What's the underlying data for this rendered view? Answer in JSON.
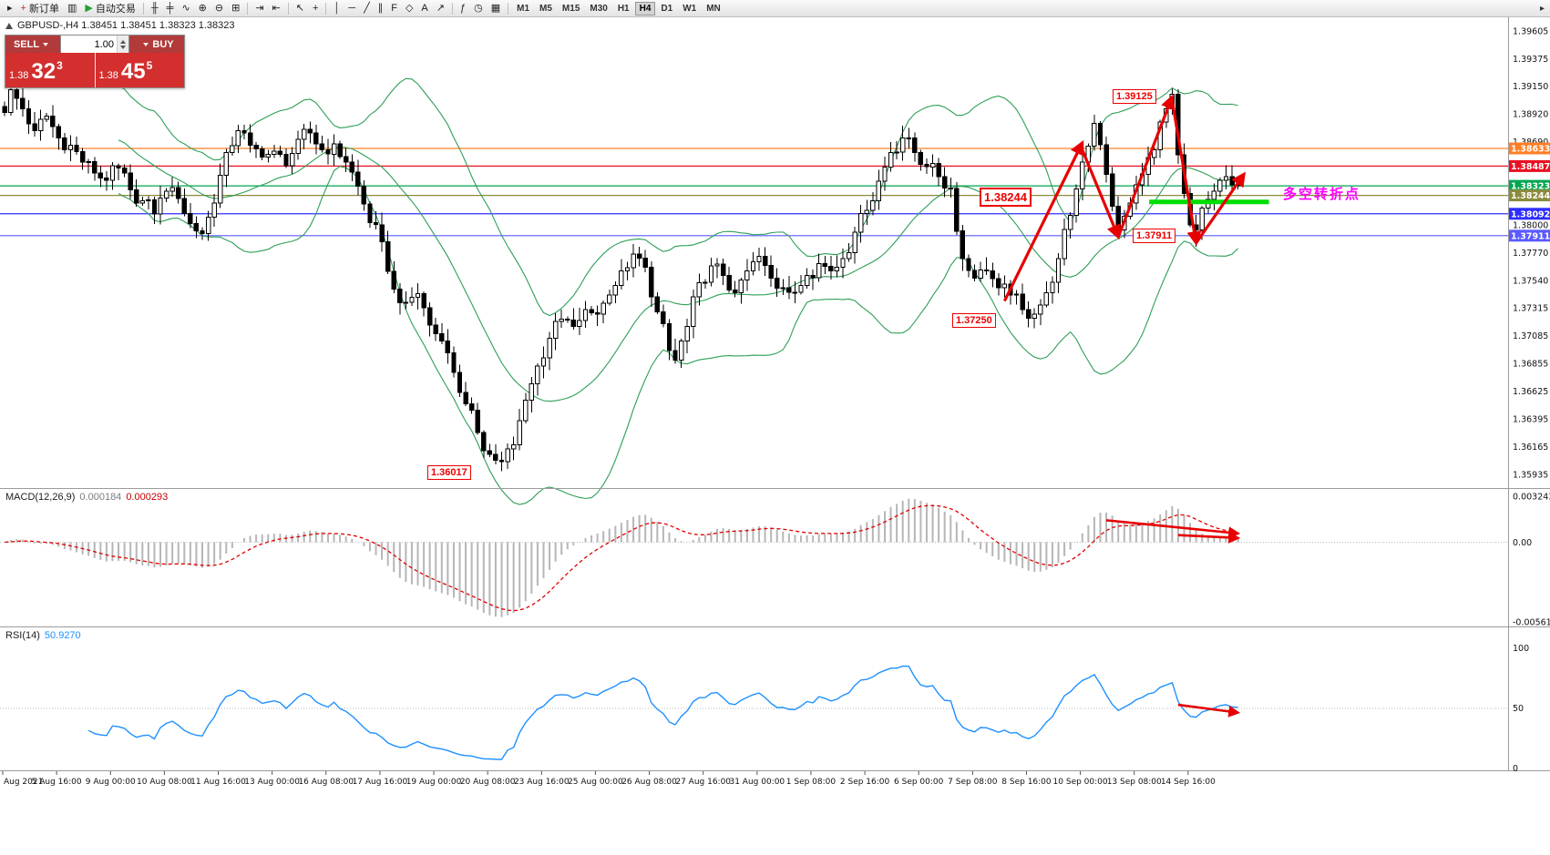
{
  "toolbar": {
    "items": [
      {
        "type": "icon",
        "name": "window-menu-icon",
        "glyph": "▸"
      },
      {
        "type": "button",
        "name": "new-order-button",
        "label": "新订单",
        "glyph": "+",
        "glyph_color": "#c43030"
      },
      {
        "type": "icon",
        "name": "market-watch-icon",
        "glyph": "▥"
      },
      {
        "type": "button",
        "name": "autotrade-button",
        "label": "自动交易",
        "glyph": "▶",
        "glyph_color": "#23a033"
      },
      {
        "type": "sep"
      },
      {
        "type": "icon",
        "name": "bar-chart-icon",
        "glyph": "╫"
      },
      {
        "type": "icon",
        "name": "candlestick-chart-icon",
        "glyph": "╪"
      },
      {
        "type": "icon",
        "name": "line-chart-icon",
        "glyph": "∿"
      },
      {
        "type": "icon",
        "name": "zoom-in-icon",
        "glyph": "⊕"
      },
      {
        "type": "icon",
        "name": "zoom-out-icon",
        "glyph": "⊖"
      },
      {
        "type": "icon",
        "name": "tile-windows-icon",
        "glyph": "⊞"
      },
      {
        "type": "sep"
      },
      {
        "type": "icon",
        "name": "auto-scroll-icon",
        "glyph": "⇥"
      },
      {
        "type": "icon",
        "name": "chart-shift-icon",
        "glyph": "⇤"
      },
      {
        "type": "sep"
      },
      {
        "type": "icon",
        "name": "cursor-icon",
        "glyph": "↖"
      },
      {
        "type": "icon",
        "name": "crosshair-icon",
        "glyph": "+"
      },
      {
        "type": "sep"
      },
      {
        "type": "icon",
        "name": "vertical-line-icon",
        "glyph": "│"
      },
      {
        "type": "icon",
        "name": "horizontal-line-icon",
        "glyph": "─"
      },
      {
        "type": "icon",
        "name": "trendline-icon",
        "glyph": "╱"
      },
      {
        "type": "icon",
        "name": "equidistant-channel-icon",
        "glyph": "∥"
      },
      {
        "type": "icon",
        "name": "fibonacci-icon",
        "glyph": "F"
      },
      {
        "type": "icon",
        "name": "shapes-icon",
        "glyph": "◇"
      },
      {
        "type": "icon",
        "name": "text-icon",
        "glyph": "A"
      },
      {
        "type": "icon",
        "name": "arrow-objects-icon",
        "glyph": "↗"
      },
      {
        "type": "sep"
      },
      {
        "type": "icon",
        "name": "indicators-icon",
        "glyph": "ƒ"
      },
      {
        "type": "icon",
        "name": "periods-icon",
        "glyph": "◷"
      },
      {
        "type": "icon",
        "name": "templates-icon",
        "glyph": "▦"
      },
      {
        "type": "sep"
      },
      {
        "type": "tf",
        "name": "timeframe-m1",
        "label": "M1"
      },
      {
        "type": "tf",
        "name": "timeframe-m5",
        "label": "M5"
      },
      {
        "type": "tf",
        "name": "timeframe-m15",
        "label": "M15"
      },
      {
        "type": "tf",
        "name": "timeframe-m30",
        "label": "M30"
      },
      {
        "type": "tf",
        "name": "timeframe-h1",
        "label": "H1"
      },
      {
        "type": "tf",
        "name": "timeframe-h4",
        "label": "H4",
        "active": true
      },
      {
        "type": "tf",
        "name": "timeframe-d1",
        "label": "D1"
      },
      {
        "type": "tf",
        "name": "timeframe-w1",
        "label": "W1"
      },
      {
        "type": "tf",
        "name": "timeframe-mn",
        "label": "MN"
      }
    ],
    "overflow_glyph": "▸"
  },
  "chart": {
    "header": "GBPUSD-,H4 1.38451 1.38451 1.38323 1.38323"
  },
  "trade_panel": {
    "sell_label": "SELL",
    "buy_label": "BUY",
    "lot": "1.00",
    "sell_price": {
      "prefix": "1.38",
      "big": "32",
      "sup": "3"
    },
    "buy_price": {
      "prefix": "1.38",
      "big": "45",
      "sup": "5"
    }
  },
  "indicators": {
    "macd": {
      "label": "MACD(12,26,9)",
      "value_main": "0.000184",
      "value_signal": "0.000293"
    },
    "rsi": {
      "label": "RSI(14)",
      "value": "50.9270"
    }
  },
  "chart_data": [
    {
      "type": "candlestick",
      "symbol": "GBPUSD-",
      "timeframe": "H4",
      "count": 207,
      "y_axis": {
        "ref_top": {
          "price": 1.39605
        },
        "ref_bottom": {
          "price": 1.35935
        },
        "tick_labels": [
          1.39605,
          1.39375,
          1.3915,
          1.3892,
          1.3869,
          1.38,
          1.3777,
          1.3754,
          1.37315,
          1.37085,
          1.36855,
          1.36625,
          1.36395,
          1.36165,
          1.35935
        ]
      },
      "x_axis": {
        "candles_per_label": 9,
        "labels": [
          "Aug 2021",
          "5 Aug 16:00",
          "9 Aug 00:00",
          "10 Aug 08:00",
          "11 Aug 16:00",
          "13 Aug 00:00",
          "16 Aug 08:00",
          "17 Aug 16:00",
          "19 Aug 00:00",
          "20 Aug 08:00",
          "23 Aug 16:00",
          "25 Aug 00:00",
          "26 Aug 08:00",
          "27 Aug 16:00",
          "31 Aug 00:00",
          "1 Sep 08:00",
          "2 Sep 16:00",
          "6 Sep 00:00",
          "7 Sep 08:00",
          "8 Sep 16:00",
          "10 Sep 00:00",
          "13 Sep 08:00",
          "14 Sep 16:00"
        ]
      },
      "close_anchors": [
        [
          0,
          1.3893
        ],
        [
          1,
          1.3912
        ],
        [
          3,
          1.3896
        ],
        [
          5,
          1.3878
        ],
        [
          7,
          1.389
        ],
        [
          9,
          1.3872
        ],
        [
          11,
          1.3866
        ],
        [
          13,
          1.3852
        ],
        [
          15,
          1.3843
        ],
        [
          17,
          1.3837
        ],
        [
          19,
          1.3847
        ],
        [
          21,
          1.3829
        ],
        [
          23,
          1.382
        ],
        [
          25,
          1.3809
        ],
        [
          27,
          1.3828
        ],
        [
          29,
          1.3822
        ],
        [
          31,
          1.3801
        ],
        [
          33,
          1.3793
        ],
        [
          35,
          1.3818
        ],
        [
          37,
          1.386
        ],
        [
          39,
          1.3878
        ],
        [
          41,
          1.3866
        ],
        [
          43,
          1.3856
        ],
        [
          45,
          1.3861
        ],
        [
          47,
          1.3849
        ],
        [
          49,
          1.3871
        ],
        [
          51,
          1.3876
        ],
        [
          53,
          1.3862
        ],
        [
          55,
          1.3867
        ],
        [
          57,
          1.3852
        ],
        [
          59,
          1.3832
        ],
        [
          61,
          1.3802
        ],
        [
          63,
          1.3786
        ],
        [
          65,
          1.3747
        ],
        [
          67,
          1.3736
        ],
        [
          69,
          1.3743
        ],
        [
          71,
          1.3717
        ],
        [
          73,
          1.3704
        ],
        [
          75,
          1.3678
        ],
        [
          77,
          1.3652
        ],
        [
          79,
          1.3628
        ],
        [
          81,
          1.361
        ],
        [
          83,
          1.3604
        ],
        [
          85,
          1.3618
        ],
        [
          87,
          1.3655
        ],
        [
          89,
          1.3683
        ],
        [
          91,
          1.3706
        ],
        [
          93,
          1.3722
        ],
        [
          95,
          1.3716
        ],
        [
          97,
          1.373
        ],
        [
          99,
          1.3726
        ],
        [
          101,
          1.3742
        ],
        [
          103,
          1.3762
        ],
        [
          105,
          1.3776
        ],
        [
          107,
          1.3765
        ],
        [
          109,
          1.3728
        ],
        [
          111,
          1.3696
        ],
        [
          112,
          1.3688
        ],
        [
          114,
          1.3716
        ],
        [
          116,
          1.3752
        ],
        [
          118,
          1.3766
        ],
        [
          120,
          1.3758
        ],
        [
          122,
          1.3744
        ],
        [
          124,
          1.3762
        ],
        [
          126,
          1.3774
        ],
        [
          128,
          1.3756
        ],
        [
          130,
          1.3748
        ],
        [
          132,
          1.3744
        ],
        [
          134,
          1.3758
        ],
        [
          136,
          1.3768
        ],
        [
          138,
          1.3762
        ],
        [
          140,
          1.3772
        ],
        [
          142,
          1.3794
        ],
        [
          144,
          1.3812
        ],
        [
          146,
          1.3836
        ],
        [
          148,
          1.386
        ],
        [
          150,
          1.3872
        ],
        [
          152,
          1.386
        ],
        [
          154,
          1.3848
        ],
        [
          156,
          1.384
        ],
        [
          158,
          1.383
        ],
        [
          160,
          1.3772
        ],
        [
          162,
          1.3756
        ],
        [
          164,
          1.3762
        ],
        [
          166,
          1.3748
        ],
        [
          168,
          1.3742
        ],
        [
          170,
          1.373
        ],
        [
          172,
          1.3726
        ],
        [
          174,
          1.3744
        ],
        [
          176,
          1.3772
        ],
        [
          178,
          1.3808
        ],
        [
          180,
          1.3852
        ],
        [
          182,
          1.3884
        ],
        [
          184,
          1.3842
        ],
        [
          186,
          1.3796
        ],
        [
          188,
          1.3818
        ],
        [
          190,
          1.3842
        ],
        [
          192,
          1.3862
        ],
        [
          194,
          1.3896
        ],
        [
          195,
          1.3908
        ],
        [
          196,
          1.3858
        ],
        [
          197,
          1.3826
        ],
        [
          198,
          1.38
        ],
        [
          199,
          1.3796
        ],
        [
          200,
          1.3814
        ],
        [
          202,
          1.3828
        ],
        [
          204,
          1.384
        ],
        [
          206,
          1.38323
        ]
      ],
      "extremes": [
        {
          "kind": "high",
          "index": 195,
          "price": 1.39125
        },
        {
          "kind": "low",
          "index": 82,
          "price": 1.36017
        },
        {
          "kind": "low",
          "index": 199,
          "price": 1.3782
        }
      ],
      "bollinger": {
        "period": 20,
        "deviation": 2,
        "color": "#2e9e57"
      },
      "hlines": [
        {
          "price": 1.38633,
          "color": "#ff7f27",
          "label": "1.38633"
        },
        {
          "price": 1.38487,
          "color": "#e81123",
          "label": "1.38487"
        },
        {
          "price": 1.38323,
          "color": "#00a651",
          "label": "1.38323"
        },
        {
          "price": 1.38244,
          "color": "#8b8b3d",
          "label": "1.38244"
        },
        {
          "price": 1.38092,
          "color": "#2e2eff",
          "label": "1.38092"
        },
        {
          "price": 1.37911,
          "color": "#5a5aff",
          "label": "1.37911"
        }
      ],
      "annotations": {
        "boxes": [
          {
            "text": "1.39125"
          },
          {
            "text": "1.38244"
          },
          {
            "text": "1.37911"
          },
          {
            "text": "1.37250"
          },
          {
            "text": "1.36017"
          }
        ],
        "arrows": [
          {
            "from": [
              167,
              1.3737
            ],
            "to": [
              180,
              1.3868
            ]
          },
          {
            "from": [
              180,
              1.3862
            ],
            "to": [
              186,
              1.379
            ]
          },
          {
            "from": [
              186,
              1.379
            ],
            "to": [
              195,
              1.3906
            ]
          },
          {
            "from": [
              195,
              1.3903
            ],
            "to": [
              199,
              1.3785
            ]
          },
          {
            "from": [
              199,
              1.3785
            ],
            "to": [
              207,
              1.3842
            ]
          }
        ],
        "segment": {
          "from_index": 191.5,
          "to_index": 211.5,
          "price": 1.3819,
          "color": "#00dd00",
          "width": 5
        },
        "note": {
          "text": "多空转折点",
          "color": "#ff00ff"
        },
        "arrow_color": "#e60000"
      }
    },
    {
      "type": "macd",
      "label": "MACD(12,26,9)",
      "params": {
        "fast": 12,
        "slow": 26,
        "signal": 9
      },
      "values_display": {
        "main": 0.000184,
        "signal": 0.000293
      },
      "y_axis": {
        "max": 0.003243,
        "min": -0.005616,
        "labels": [
          "0.003243",
          "0.00",
          "-0.005616"
        ]
      },
      "colors": {
        "histogram": "#b6b6b6",
        "signal": "#e00000"
      },
      "annotations": {
        "arrow_color": "#e60000",
        "arrows": [
          {
            "from": [
              184,
              0.00155
            ],
            "to": [
              206,
              0.00062
            ]
          },
          {
            "from": [
              196,
              0.0005
            ],
            "to": [
              206,
              0.0003
            ]
          }
        ]
      }
    },
    {
      "type": "rsi",
      "label": "RSI(14)",
      "period": 14,
      "value_display": 50.927,
      "y_axis": {
        "max": 100,
        "min": 0,
        "level": 50,
        "labels": [
          "100",
          "50",
          "0"
        ]
      },
      "color": "#1e90ff",
      "annotations": {
        "arrow_color": "#e60000",
        "arrows": [
          {
            "from": [
              196,
              53
            ],
            "to": [
              206,
              46.5
            ]
          }
        ]
      }
    }
  ]
}
